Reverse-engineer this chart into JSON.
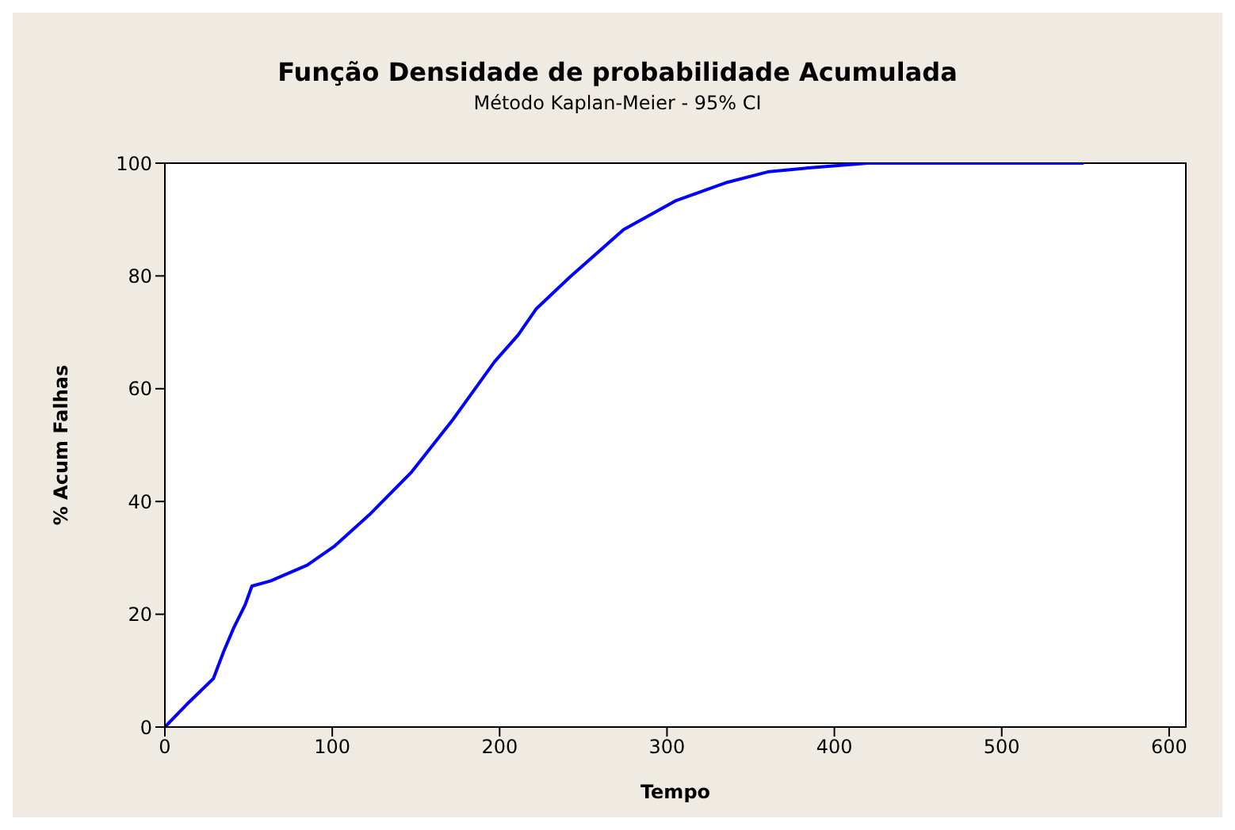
{
  "chart_data": {
    "type": "line",
    "title": "Função Densidade de probabilidade Acumulada",
    "subtitle": "Método Kaplan-Meier - 95% CI",
    "xlabel": "Tempo",
    "ylabel": "% Acum Falhas",
    "series": [
      {
        "color": "#0000ff",
        "x": [
          0,
          13,
          29,
          35,
          41,
          48,
          52,
          63,
          85,
          101,
          122,
          147,
          172,
          197,
          211,
          222,
          242,
          274,
          305,
          336,
          361,
          386,
          420,
          549
        ],
        "values": [
          0,
          4,
          8.6,
          13.3,
          17.5,
          21.7,
          25,
          25.9,
          28.7,
          32,
          37.6,
          45.1,
          54.5,
          64.8,
          69.5,
          74.2,
          79.8,
          88.2,
          93.3,
          96.6,
          98.5,
          99.2,
          100,
          100
        ]
      }
    ],
    "xlim": [
      0,
      610
    ],
    "xticks": [
      0,
      100,
      200,
      300,
      400,
      500,
      600
    ],
    "ylim": [
      0,
      100
    ],
    "yticks": [
      0,
      20,
      40,
      60,
      80,
      100
    ],
    "legend": false
  }
}
